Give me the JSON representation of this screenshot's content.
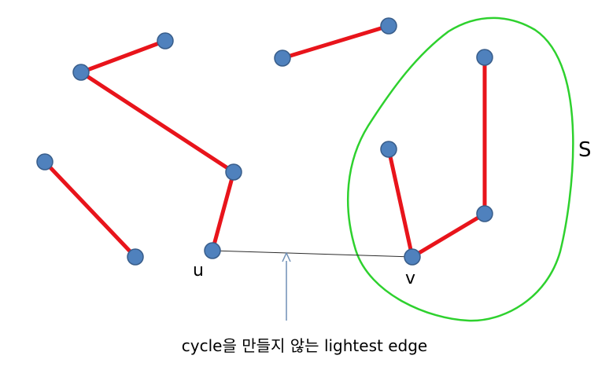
{
  "labels": {
    "u": "u",
    "v": "v",
    "set": "S"
  },
  "caption": "cycle을 만들지 않는 lightest edge",
  "colors": {
    "tree_edge": "#e8141b",
    "candidate_edge": "#2b2b2b",
    "node_fill": "#4f81bd",
    "node_stroke": "#385d8a",
    "set_boundary": "#2ed12e",
    "arrow": "#6f8fb5"
  }
}
